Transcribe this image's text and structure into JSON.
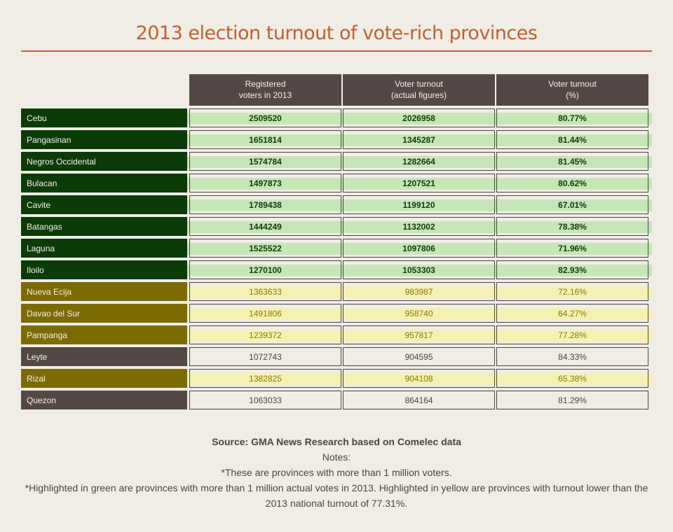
{
  "title": "2013 election turnout of vote-rich provinces",
  "colors": {
    "background": "#f0ede6",
    "title": "#c4602e",
    "header_bg": "#534845",
    "green_row_band": "#c7e6b7",
    "green_label_bg": "#0b3b07",
    "green_text": "#0f3c0b",
    "yellow_row_band": "#f5f1b3",
    "yellow_label_bg": "#7c6b02",
    "yellow_text": "#8a7a00",
    "plain_label_bg": "#534845",
    "plain_text": "#4a4442"
  },
  "chart_data": {
    "type": "table",
    "columns": [
      "Registered\nvoters in 2013",
      "Voter turnout\n(actual figures)",
      "Voter turnout\n(%)"
    ],
    "rows": [
      {
        "province": "Cebu",
        "registered": "2509520",
        "turnout": "2026958",
        "pct": "80.77%",
        "highlight": "green"
      },
      {
        "province": "Pangasinan",
        "registered": "1651814",
        "turnout": "1345287",
        "pct": "81.44%",
        "highlight": "green"
      },
      {
        "province": "Negros Occidental",
        "registered": "1574784",
        "turnout": "1282664",
        "pct": "81.45%",
        "highlight": "green"
      },
      {
        "province": "Bulacan",
        "registered": "1497873",
        "turnout": "1207521",
        "pct": "80.62%",
        "highlight": "green"
      },
      {
        "province": "Cavite",
        "registered": "1789438",
        "turnout": "1199120",
        "pct": "67.01%",
        "highlight": "green"
      },
      {
        "province": "Batangas",
        "registered": "1444249",
        "turnout": "1132002",
        "pct": "78.38%",
        "highlight": "green"
      },
      {
        "province": "Laguna",
        "registered": "1525522",
        "turnout": "1097806",
        "pct": "71.96%",
        "highlight": "green"
      },
      {
        "province": "Iloilo",
        "registered": "1270100",
        "turnout": "1053303",
        "pct": "82.93%",
        "highlight": "green"
      },
      {
        "province": "Nueva Ecija",
        "registered": "1363633",
        "turnout": "983987",
        "pct": "72.16%",
        "highlight": "yellow"
      },
      {
        "province": "Davao del Sur",
        "registered": "1491806",
        "turnout": "958740",
        "pct": "64.27%",
        "highlight": "yellow"
      },
      {
        "province": "Pampanga",
        "registered": "1239372",
        "turnout": "957817",
        "pct": "77.28%",
        "highlight": "yellow"
      },
      {
        "province": "Leyte",
        "registered": "1072743",
        "turnout": "904595",
        "pct": "84.33%",
        "highlight": "none"
      },
      {
        "province": "Rizal",
        "registered": "1382825",
        "turnout": "904108",
        "pct": "65.38%",
        "highlight": "yellow"
      },
      {
        "province": "Quezon",
        "registered": "1063033",
        "turnout": "864164",
        "pct": "81.29%",
        "highlight": "none"
      }
    ]
  },
  "footer": {
    "source": "Source: GMA News Research based on Comelec data",
    "notes_heading": "Notes:",
    "note1": "*These are provinces with more than 1 million voters.",
    "note2": "*Highlighted in green are provinces with more than 1 million actual votes in 2013.  Highlighted in yellow are provinces with turnout lower than the 2013 national turnout of 77.31%."
  }
}
